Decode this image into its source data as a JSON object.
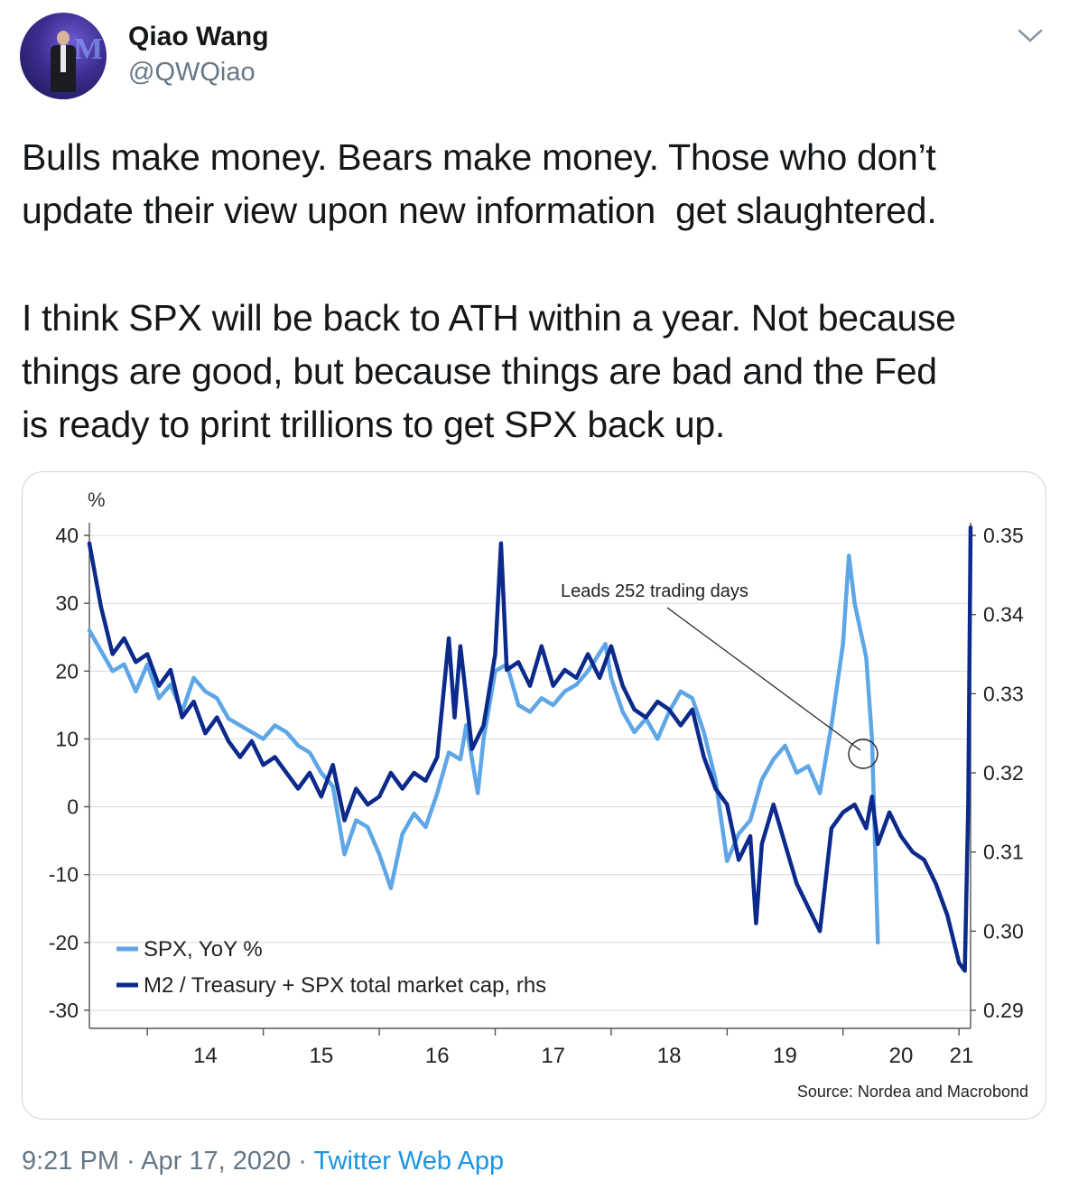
{
  "tweet": {
    "author_name": "Qiao Wang",
    "author_handle": "@QWQiao",
    "avatar_logo": "M",
    "text_lines": [
      "Bulls make money. Bears make money. Those who don’t",
      "update their view upon new information  get slaughtered.",
      "I think SPX will be back to ATH within a year. Not because",
      "things are good, but because things are bad and the Fed",
      "is ready to print trillions to get SPX back up."
    ],
    "time": "9:21 PM",
    "date": "Apr 17, 2020",
    "source": "Twitter Web App",
    "separator": " · ",
    "menu_icon": "chevron-down-icon"
  },
  "colors": {
    "spx": "#5ea6e6",
    "m2": "#0b2a8c",
    "grid": "#d9d9d9",
    "link": "#1b95e0",
    "muted": "#657786"
  },
  "chart_data": {
    "type": "line",
    "unit_label": "%",
    "annotation": "Leads 252 trading days",
    "source": "Source: Nordea and Macrobond",
    "x_ticks": [
      "14",
      "15",
      "16",
      "17",
      "18",
      "19",
      "20",
      "21"
    ],
    "xlim": [
      2013.5,
      2021.1
    ],
    "y_left": {
      "ticks": [
        "40",
        "30",
        "20",
        "10",
        "0",
        "-10",
        "-20",
        "-30"
      ],
      "lim": [
        -30,
        40
      ]
    },
    "y_right": {
      "ticks": [
        "0.35",
        "0.34",
        "0.33",
        "0.32",
        "0.31",
        "0.30",
        "0.29"
      ],
      "lim": [
        0.29,
        0.35
      ]
    },
    "grid": true,
    "legend_position": "bottom-left",
    "series": [
      {
        "name": "SPX, YoY %",
        "axis": "left",
        "points": [
          [
            2013.5,
            26
          ],
          [
            2013.6,
            23
          ],
          [
            2013.7,
            20
          ],
          [
            2013.8,
            21
          ],
          [
            2013.9,
            17
          ],
          [
            2014.0,
            21
          ],
          [
            2014.1,
            16
          ],
          [
            2014.2,
            18
          ],
          [
            2014.3,
            14
          ],
          [
            2014.4,
            19
          ],
          [
            2014.5,
            17
          ],
          [
            2014.6,
            16
          ],
          [
            2014.7,
            13
          ],
          [
            2014.8,
            12
          ],
          [
            2014.9,
            11
          ],
          [
            2015.0,
            10
          ],
          [
            2015.1,
            12
          ],
          [
            2015.2,
            11
          ],
          [
            2015.3,
            9
          ],
          [
            2015.4,
            8
          ],
          [
            2015.5,
            5
          ],
          [
            2015.6,
            3
          ],
          [
            2015.7,
            -7
          ],
          [
            2015.8,
            -2
          ],
          [
            2015.9,
            -3
          ],
          [
            2016.0,
            -7
          ],
          [
            2016.1,
            -12
          ],
          [
            2016.2,
            -4
          ],
          [
            2016.3,
            -1
          ],
          [
            2016.4,
            -3
          ],
          [
            2016.5,
            2
          ],
          [
            2016.6,
            8
          ],
          [
            2016.7,
            7
          ],
          [
            2016.75,
            12
          ],
          [
            2016.85,
            2
          ],
          [
            2016.9,
            10
          ],
          [
            2017.0,
            20
          ],
          [
            2017.1,
            21
          ],
          [
            2017.2,
            15
          ],
          [
            2017.3,
            14
          ],
          [
            2017.4,
            16
          ],
          [
            2017.5,
            15
          ],
          [
            2017.6,
            17
          ],
          [
            2017.7,
            18
          ],
          [
            2017.8,
            20
          ],
          [
            2017.95,
            24
          ],
          [
            2018.0,
            19
          ],
          [
            2018.1,
            14
          ],
          [
            2018.2,
            11
          ],
          [
            2018.3,
            13
          ],
          [
            2018.4,
            10
          ],
          [
            2018.5,
            14
          ],
          [
            2018.6,
            17
          ],
          [
            2018.7,
            16
          ],
          [
            2018.8,
            11
          ],
          [
            2018.9,
            4
          ],
          [
            2019.0,
            -8
          ],
          [
            2019.1,
            -4
          ],
          [
            2019.2,
            -2
          ],
          [
            2019.3,
            4
          ],
          [
            2019.4,
            7
          ],
          [
            2019.5,
            9
          ],
          [
            2019.6,
            5
          ],
          [
            2019.7,
            6
          ],
          [
            2019.8,
            2
          ],
          [
            2019.9,
            12
          ],
          [
            2020.0,
            24
          ],
          [
            2020.05,
            37
          ],
          [
            2020.1,
            30
          ],
          [
            2020.2,
            22
          ],
          [
            2020.25,
            10
          ],
          [
            2020.3,
            -20
          ]
        ]
      },
      {
        "name": "M2 / Treasury + SPX total market cap, rhs",
        "axis": "right",
        "points": [
          [
            2013.5,
            0.349
          ],
          [
            2013.6,
            0.341
          ],
          [
            2013.7,
            0.335
          ],
          [
            2013.8,
            0.337
          ],
          [
            2013.9,
            0.334
          ],
          [
            2014.0,
            0.335
          ],
          [
            2014.1,
            0.331
          ],
          [
            2014.2,
            0.333
          ],
          [
            2014.3,
            0.327
          ],
          [
            2014.4,
            0.329
          ],
          [
            2014.5,
            0.325
          ],
          [
            2014.6,
            0.327
          ],
          [
            2014.7,
            0.324
          ],
          [
            2014.8,
            0.322
          ],
          [
            2014.9,
            0.324
          ],
          [
            2015.0,
            0.321
          ],
          [
            2015.1,
            0.322
          ],
          [
            2015.2,
            0.32
          ],
          [
            2015.3,
            0.318
          ],
          [
            2015.4,
            0.32
          ],
          [
            2015.5,
            0.317
          ],
          [
            2015.6,
            0.321
          ],
          [
            2015.7,
            0.314
          ],
          [
            2015.8,
            0.318
          ],
          [
            2015.9,
            0.316
          ],
          [
            2016.0,
            0.317
          ],
          [
            2016.1,
            0.32
          ],
          [
            2016.2,
            0.318
          ],
          [
            2016.3,
            0.32
          ],
          [
            2016.4,
            0.319
          ],
          [
            2016.5,
            0.322
          ],
          [
            2016.6,
            0.337
          ],
          [
            2016.65,
            0.327
          ],
          [
            2016.7,
            0.336
          ],
          [
            2016.8,
            0.323
          ],
          [
            2016.9,
            0.326
          ],
          [
            2017.0,
            0.335
          ],
          [
            2017.05,
            0.349
          ],
          [
            2017.1,
            0.333
          ],
          [
            2017.2,
            0.334
          ],
          [
            2017.3,
            0.331
          ],
          [
            2017.4,
            0.336
          ],
          [
            2017.5,
            0.331
          ],
          [
            2017.6,
            0.333
          ],
          [
            2017.7,
            0.332
          ],
          [
            2017.8,
            0.335
          ],
          [
            2017.9,
            0.332
          ],
          [
            2018.0,
            0.336
          ],
          [
            2018.1,
            0.331
          ],
          [
            2018.2,
            0.328
          ],
          [
            2018.3,
            0.327
          ],
          [
            2018.4,
            0.329
          ],
          [
            2018.5,
            0.328
          ],
          [
            2018.6,
            0.326
          ],
          [
            2018.7,
            0.328
          ],
          [
            2018.8,
            0.322
          ],
          [
            2018.9,
            0.318
          ],
          [
            2019.0,
            0.316
          ],
          [
            2019.1,
            0.309
          ],
          [
            2019.2,
            0.312
          ],
          [
            2019.25,
            0.301
          ],
          [
            2019.3,
            0.311
          ],
          [
            2019.4,
            0.316
          ],
          [
            2019.5,
            0.311
          ],
          [
            2019.6,
            0.306
          ],
          [
            2019.7,
            0.303
          ],
          [
            2019.8,
            0.3
          ],
          [
            2019.9,
            0.313
          ],
          [
            2020.0,
            0.315
          ],
          [
            2020.1,
            0.316
          ],
          [
            2020.2,
            0.313
          ],
          [
            2020.25,
            0.317
          ],
          [
            2020.3,
            0.311
          ],
          [
            2020.4,
            0.315
          ],
          [
            2020.5,
            0.312
          ],
          [
            2020.6,
            0.31
          ],
          [
            2020.7,
            0.309
          ],
          [
            2020.8,
            0.306
          ],
          [
            2020.9,
            0.302
          ],
          [
            2021.0,
            0.296
          ],
          [
            2021.05,
            0.295
          ],
          [
            2021.08,
            0.316
          ],
          [
            2021.1,
            0.351
          ]
        ]
      }
    ]
  }
}
